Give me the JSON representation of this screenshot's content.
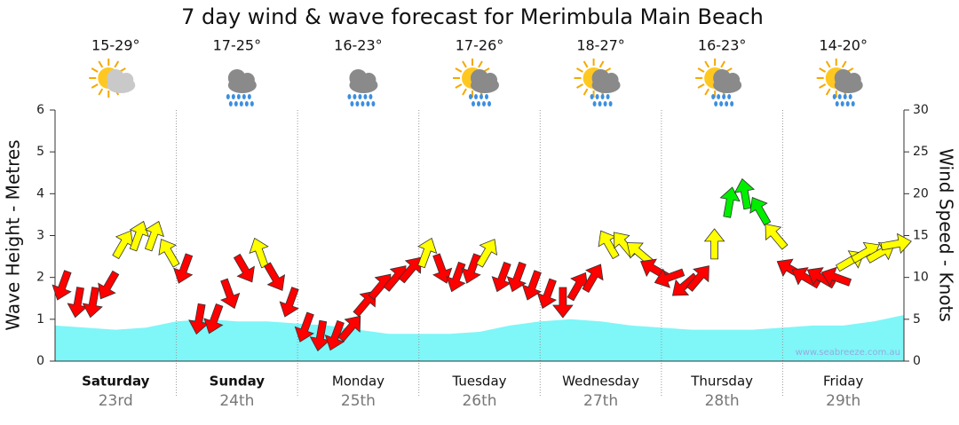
{
  "chart_data": {
    "type": "wind-wave",
    "title": "7 day wind & wave forecast for Merimbula Main Beach",
    "days": [
      {
        "name": "Saturday",
        "date": "23rd",
        "temp": "15-29°"
      },
      {
        "name": "Sunday",
        "date": "24th",
        "temp": "17-25°"
      },
      {
        "name": "Monday",
        "date": "25th",
        "temp": "16-23°"
      },
      {
        "name": "Tuesday",
        "date": "26th",
        "temp": "17-26°"
      },
      {
        "name": "Wednesday",
        "date": "27th",
        "temp": "18-27°"
      },
      {
        "name": "Thursday",
        "date": "28th",
        "temp": "16-23°"
      },
      {
        "name": "Friday",
        "date": "29th",
        "temp": "14-20°"
      }
    ],
    "weekend_bold": [
      true,
      true,
      false,
      false,
      false,
      false,
      false
    ],
    "y_label": "Wave Height - Metres",
    "y2_label": "Wind Speed - Knots",
    "ylim": [
      0,
      6
    ],
    "yticks": [
      0,
      1,
      2,
      3,
      4,
      5,
      6
    ],
    "y2lim": [
      0,
      30
    ],
    "y2ticks": [
      0,
      5,
      10,
      15,
      20,
      25,
      30
    ],
    "wave_color": "#7ff6f8",
    "wave_heights": [
      0.85,
      0.8,
      0.75,
      0.8,
      0.95,
      1.0,
      0.95,
      0.95,
      0.9,
      0.85,
      0.75,
      0.65,
      0.65,
      0.65,
      0.7,
      0.85,
      0.95,
      1.0,
      0.95,
      0.85,
      0.8,
      0.75,
      0.75,
      0.75,
      0.8,
      0.85,
      0.85,
      0.95,
      1.1
    ],
    "wind": {
      "values": [
        9,
        7,
        7,
        9,
        14,
        15,
        15,
        13,
        11,
        5,
        5,
        8,
        11,
        13,
        10,
        7,
        4,
        3,
        3,
        4,
        7,
        9,
        10,
        11,
        13,
        11,
        10,
        11,
        13,
        10,
        10,
        9,
        8,
        7,
        9,
        10,
        14,
        14,
        13,
        11,
        10,
        9,
        10,
        14,
        19,
        20,
        18,
        15,
        11,
        10,
        10,
        10,
        12,
        13,
        13,
        14
      ],
      "directions": [
        200,
        190,
        190,
        210,
        30,
        20,
        20,
        330,
        200,
        190,
        200,
        160,
        150,
        340,
        150,
        200,
        200,
        190,
        200,
        40,
        40,
        40,
        40,
        40,
        20,
        160,
        200,
        200,
        30,
        200,
        200,
        200,
        200,
        180,
        30,
        30,
        330,
        320,
        310,
        300,
        250,
        230,
        40,
        0,
        10,
        350,
        330,
        320,
        300,
        300,
        300,
        290,
        60,
        60,
        60,
        80
      ],
      "colors": [
        "#ff0000",
        "#ff0000",
        "#ff0000",
        "#ff0000",
        "#ffff00",
        "#ffff00",
        "#ffff00",
        "#ffff00",
        "#ff0000",
        "#ff0000",
        "#ff0000",
        "#ff0000",
        "#ff0000",
        "#ffff00",
        "#ff0000",
        "#ff0000",
        "#ff0000",
        "#ff0000",
        "#ff0000",
        "#ff0000",
        "#ff0000",
        "#ff0000",
        "#ff0000",
        "#ff0000",
        "#ffff00",
        "#ff0000",
        "#ff0000",
        "#ff0000",
        "#ffff00",
        "#ff0000",
        "#ff0000",
        "#ff0000",
        "#ff0000",
        "#ff0000",
        "#ff0000",
        "#ff0000",
        "#ffff00",
        "#ffff00",
        "#ffff00",
        "#ff0000",
        "#ff0000",
        "#ff0000",
        "#ff0000",
        "#ffff00",
        "#00ee00",
        "#00ee00",
        "#00ee00",
        "#ffff00",
        "#ff0000",
        "#ff0000",
        "#ff0000",
        "#ff0000",
        "#ffff00",
        "#ffff00",
        "#ffff00",
        "#ffff00"
      ]
    },
    "watermark": "www.seabreeze.com.au"
  }
}
